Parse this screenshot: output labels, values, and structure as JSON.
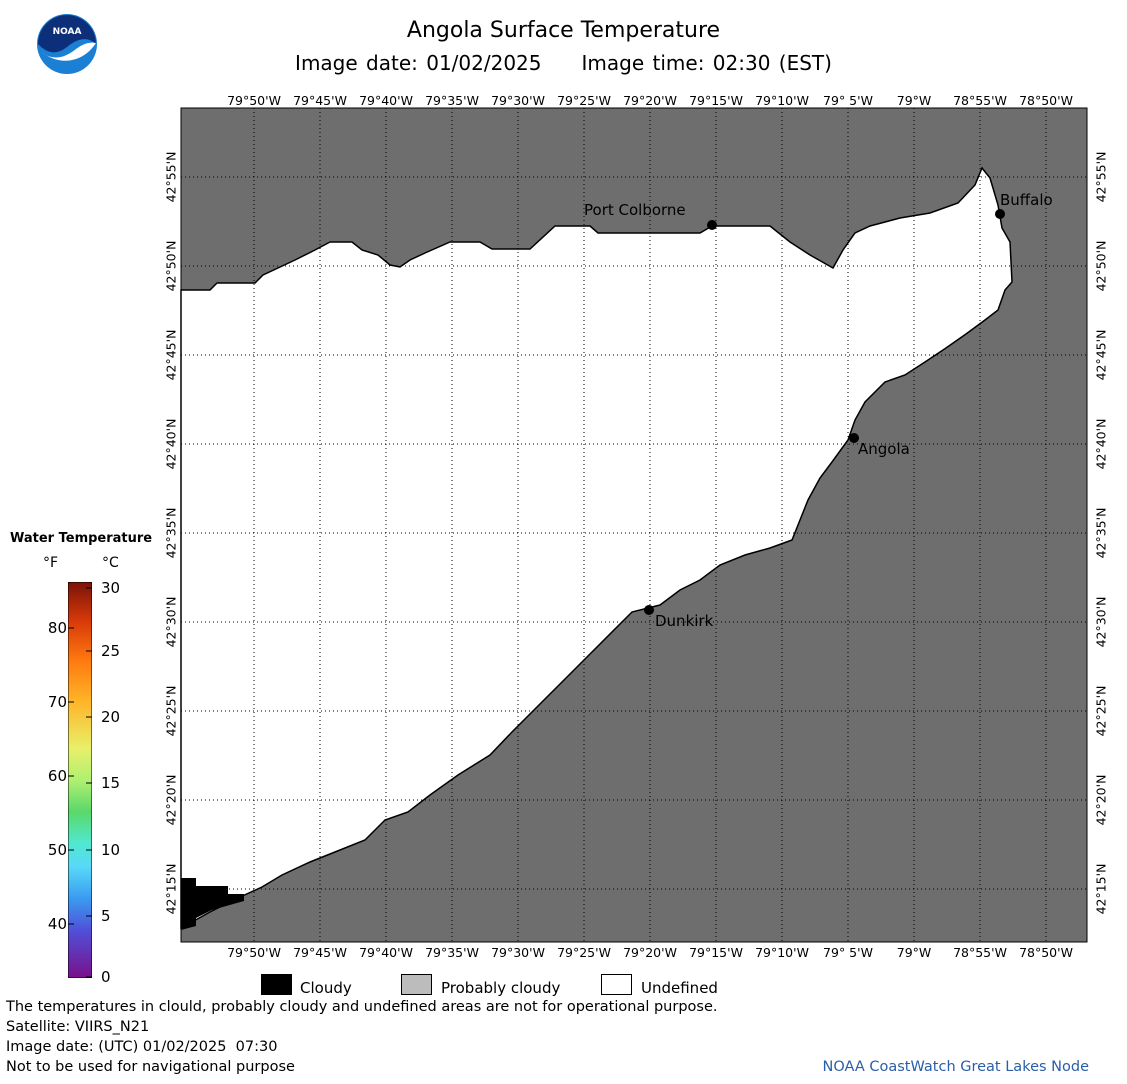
{
  "header": {
    "title": "Angola Surface Temperature",
    "image_date": "Image date: 01/02/2025",
    "image_time": "Image time: 02:30 (EST)"
  },
  "logo": {
    "text": "NOAA"
  },
  "map": {
    "longitude_ticks": [
      "79°50'W",
      "79°45'W",
      "79°40'W",
      "79°35'W",
      "79°30'W",
      "79°25'W",
      "79°20'W",
      "79°15'W",
      "79°10'W",
      "79° 5'W",
      "79°W",
      "78°55'W",
      "78°50'W"
    ],
    "latitude_ticks": [
      "42°55'N",
      "42°50'N",
      "42°45'N",
      "42°40'N",
      "42°35'N",
      "42°30'N",
      "42°25'N",
      "42°20'N",
      "42°15'N"
    ],
    "cities": [
      {
        "name": "Port Colborne"
      },
      {
        "name": "Buffalo"
      },
      {
        "name": "Angola"
      },
      {
        "name": "Dunkirk"
      }
    ],
    "colors": {
      "land": "#6e6e6e",
      "water_undefined": "#ffffff",
      "cloudy": "#000000",
      "grid": "#000000"
    }
  },
  "legend": {
    "title": "Water Temperature",
    "unit_f": "°F",
    "unit_c": "°C",
    "f_ticks": [
      "80",
      "70",
      "60",
      "50",
      "40"
    ],
    "c_ticks": [
      "30",
      "25",
      "20",
      "15",
      "10",
      "5",
      "0"
    ]
  },
  "key": {
    "cloudy": "Cloudy",
    "probably_cloudy": "Probably cloudy",
    "undefined": "Undefined",
    "colors": {
      "cloudy": "#000000",
      "probably_cloudy": "#bcbcbc",
      "undefined": "#ffffff"
    }
  },
  "footer": {
    "disclaimer": "The temperatures in clould, probably cloudy and undefined areas are not for operational purpose.",
    "satellite": "Satellite: VIIRS_N21",
    "utc_date": "Image date: (UTC) 01/02/2025  07:30",
    "nav_warning": "Not to be used for navigational purpose",
    "credit": "NOAA CoastWatch Great Lakes Node"
  }
}
